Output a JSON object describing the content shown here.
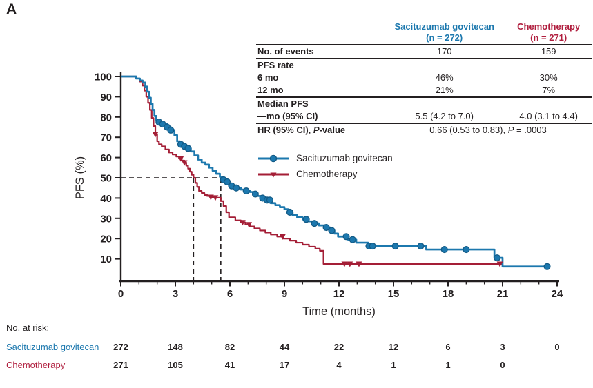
{
  "panel_label": "A",
  "colors": {
    "sg_blue": "#1c78ae",
    "sg_blue_dark": "#135a85",
    "chemo_red": "#a41e36",
    "chemo_red_text": "#b01e3e",
    "axis_black": "#231f20"
  },
  "table": {
    "header": {
      "sg_line1": "Sacituzumab govitecan",
      "sg_line2": "(n = 272)",
      "chemo_line1": "Chemotherapy",
      "chemo_line2": "(n = 271)"
    },
    "no_events": {
      "label": "No. of events",
      "sg": "170",
      "chemo": "159"
    },
    "pfs_rate": {
      "label": "PFS rate",
      "r6": {
        "label": "6 mo",
        "sg": "46%",
        "chemo": "30%"
      },
      "r12": {
        "label": "12 mo",
        "sg": "21%",
        "chemo": "7%"
      }
    },
    "median": {
      "label1": "Median PFS",
      "label2": "—mo (95% CI)",
      "sg": "5.5 (4.2 to 7.0)",
      "chemo": "4.0 (3.1 to 4.4)"
    },
    "hr": {
      "label_pre": "HR (95% CI), ",
      "label_italic": "P",
      "label_post": "-value",
      "value_pre": "0.66 (0.53 to 0.83), ",
      "value_italic": "P",
      "value_post": " = .0003"
    }
  },
  "legend": {
    "items": [
      {
        "label": "Sacituzumab govitecan",
        "marker": "circle"
      },
      {
        "label": "Chemotherapy",
        "marker": "triangle-down"
      }
    ]
  },
  "chart_data": {
    "type": "line",
    "subtype": "kaplan-meier-step",
    "xlabel": "Time (months)",
    "ylabel": "PFS (%)",
    "xlim": [
      0,
      24
    ],
    "ylim": [
      0,
      100
    ],
    "xticks": [
      0,
      3,
      6,
      9,
      12,
      15,
      18,
      21,
      24
    ],
    "minor_x_every": 1,
    "yticks": [
      10,
      20,
      30,
      40,
      50,
      60,
      70,
      80,
      90,
      100
    ],
    "grid": false,
    "median_lines": {
      "y_pct": 50,
      "x_months": [
        4.0,
        5.5
      ]
    },
    "series": [
      {
        "name": "Sacituzumab govitecan",
        "marker": "circle",
        "end_month": 23.6,
        "steps": [
          [
            0,
            100
          ],
          [
            0.85,
            99
          ],
          [
            1.05,
            98
          ],
          [
            1.2,
            97
          ],
          [
            1.35,
            95
          ],
          [
            1.45,
            92.5
          ],
          [
            1.55,
            89.5
          ],
          [
            1.65,
            86.5
          ],
          [
            1.75,
            83.5
          ],
          [
            1.85,
            80.5
          ],
          [
            1.95,
            78.5
          ],
          [
            2.1,
            77.5
          ],
          [
            2.3,
            76.5
          ],
          [
            2.55,
            75
          ],
          [
            2.75,
            73.5
          ],
          [
            2.95,
            71
          ],
          [
            3.1,
            68
          ],
          [
            3.25,
            66.5
          ],
          [
            3.45,
            65.5
          ],
          [
            3.65,
            64.5
          ],
          [
            3.85,
            63
          ],
          [
            4.05,
            61
          ],
          [
            4.25,
            59
          ],
          [
            4.45,
            57.5
          ],
          [
            4.65,
            56.5
          ],
          [
            4.85,
            55
          ],
          [
            5.05,
            53.5
          ],
          [
            5.25,
            52
          ],
          [
            5.45,
            50.5
          ],
          [
            5.6,
            49
          ],
          [
            5.75,
            48
          ],
          [
            5.95,
            46
          ],
          [
            6.3,
            45
          ],
          [
            6.6,
            44.2
          ],
          [
            6.9,
            43.5
          ],
          [
            7.1,
            43
          ],
          [
            7.3,
            42
          ],
          [
            7.5,
            41
          ],
          [
            7.75,
            40
          ],
          [
            8.0,
            39
          ],
          [
            8.25,
            37.5
          ],
          [
            8.5,
            36.5
          ],
          [
            8.75,
            35.5
          ],
          [
            9.0,
            34.5
          ],
          [
            9.2,
            33
          ],
          [
            9.45,
            31.5
          ],
          [
            9.7,
            30.5
          ],
          [
            10.0,
            29.5
          ],
          [
            10.3,
            28.5
          ],
          [
            10.6,
            27.5
          ],
          [
            10.9,
            26.5
          ],
          [
            11.2,
            25.5
          ],
          [
            11.5,
            24
          ],
          [
            11.75,
            22.5
          ],
          [
            11.95,
            21
          ],
          [
            12.5,
            19.5
          ],
          [
            12.95,
            18
          ],
          [
            13.6,
            16.3
          ],
          [
            16.8,
            14.6
          ],
          [
            20.55,
            10.5
          ],
          [
            21.0,
            6.2
          ]
        ],
        "censor_months": [
          2.1,
          2.3,
          2.55,
          2.75,
          3.3,
          3.5,
          3.7,
          5.65,
          5.85,
          6.1,
          6.35,
          6.9,
          7.4,
          7.8,
          8.05,
          8.2,
          9.3,
          10.2,
          10.65,
          11.3,
          11.6,
          12.4,
          12.75,
          13.65,
          13.85,
          15.1,
          16.5,
          17.8,
          19.0,
          20.7,
          23.45
        ]
      },
      {
        "name": "Chemotherapy",
        "marker": "triangle-down",
        "end_month": 21.0,
        "steps": [
          [
            0,
            100
          ],
          [
            0.85,
            99
          ],
          [
            1.05,
            97.5
          ],
          [
            1.2,
            95.5
          ],
          [
            1.3,
            93
          ],
          [
            1.4,
            90
          ],
          [
            1.5,
            87
          ],
          [
            1.6,
            83.5
          ],
          [
            1.7,
            79.5
          ],
          [
            1.8,
            75.5
          ],
          [
            1.9,
            71.5
          ],
          [
            2.0,
            68
          ],
          [
            2.1,
            66.5
          ],
          [
            2.25,
            65.5
          ],
          [
            2.45,
            64
          ],
          [
            2.65,
            62.5
          ],
          [
            2.85,
            61.5
          ],
          [
            3.05,
            60.5
          ],
          [
            3.2,
            59.5
          ],
          [
            3.35,
            58.5
          ],
          [
            3.5,
            57.5
          ],
          [
            3.6,
            56
          ],
          [
            3.7,
            54.5
          ],
          [
            3.8,
            53
          ],
          [
            3.9,
            51.5
          ],
          [
            4.0,
            50
          ],
          [
            4.1,
            47.5
          ],
          [
            4.2,
            45.5
          ],
          [
            4.3,
            43.5
          ],
          [
            4.45,
            42.5
          ],
          [
            4.6,
            41.5
          ],
          [
            4.75,
            41
          ],
          [
            4.95,
            40.5
          ],
          [
            5.2,
            40.2
          ],
          [
            5.5,
            38.5
          ],
          [
            5.65,
            36
          ],
          [
            5.8,
            33
          ],
          [
            5.95,
            30.5
          ],
          [
            6.3,
            29
          ],
          [
            6.6,
            28
          ],
          [
            6.85,
            27
          ],
          [
            7.1,
            26
          ],
          [
            7.35,
            25
          ],
          [
            7.65,
            24
          ],
          [
            7.95,
            23
          ],
          [
            8.25,
            22
          ],
          [
            8.6,
            21
          ],
          [
            8.95,
            20
          ],
          [
            9.3,
            19
          ],
          [
            9.65,
            18
          ],
          [
            10.0,
            17
          ],
          [
            10.35,
            16
          ],
          [
            10.7,
            15
          ],
          [
            10.95,
            14
          ],
          [
            11.15,
            7.5
          ]
        ],
        "censor_months": [
          1.9,
          3.3,
          3.5,
          4.95,
          5.2,
          6.7,
          7.05,
          8.9,
          12.3,
          12.6,
          13.1,
          20.85
        ]
      }
    ]
  },
  "at_risk": {
    "title": "No. at risk:",
    "months": [
      0,
      3,
      6,
      9,
      12,
      15,
      18,
      21,
      24
    ],
    "rows": [
      {
        "label": "Sacituzumab govitecan",
        "color_key": "sg_blue",
        "values": [
          "272",
          "148",
          "82",
          "44",
          "22",
          "12",
          "6",
          "3",
          "0"
        ]
      },
      {
        "label": "Chemotherapy",
        "color_key": "chemo_red_text",
        "values": [
          "271",
          "105",
          "41",
          "17",
          "4",
          "1",
          "1",
          "0"
        ]
      }
    ]
  }
}
